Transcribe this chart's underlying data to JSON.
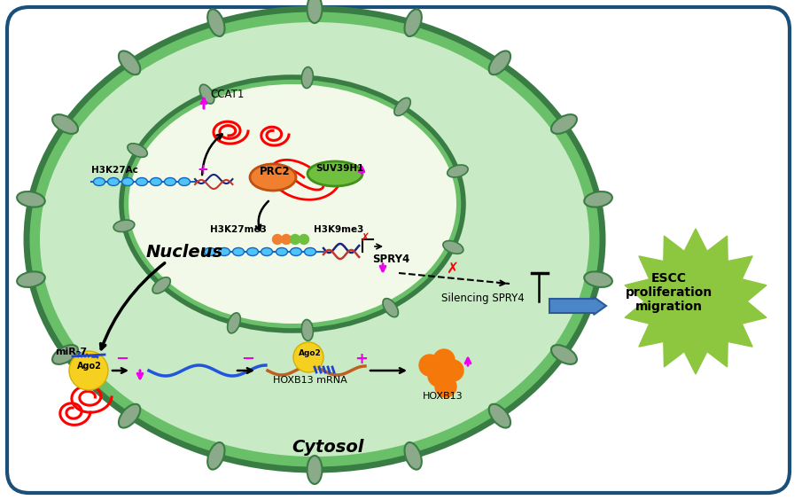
{
  "bg_color": "#ffffff",
  "outer_box_edge": "#1a4f7a",
  "cell_green_dark": "#3a7d44",
  "cell_green_mid": "#6abf69",
  "cell_green_light": "#c8eac4",
  "nucleus_fill": "#e8f5d0",
  "nucleus_border": "#3a7d44",
  "bump_fill": "#8aaa8a",
  "bump_edge": "#3a7d44",
  "magenta": "#ee00ee",
  "red": "#dd0000",
  "blue_dark": "#1a237e",
  "blue_mid": "#1565c0",
  "blue_light": "#4fc3f7",
  "orange": "#f5780a",
  "orange2": "#e87d10",
  "green_label": "#8dc63f",
  "yellow": "#f5d020",
  "escc_color": "#8dc63f",
  "arrow_blue": "#4a86c8",
  "nucleus_label": "Nucleus",
  "cytosol_label": "Cytosol",
  "escc_label": "ESCC\nproliferation\nmigration"
}
